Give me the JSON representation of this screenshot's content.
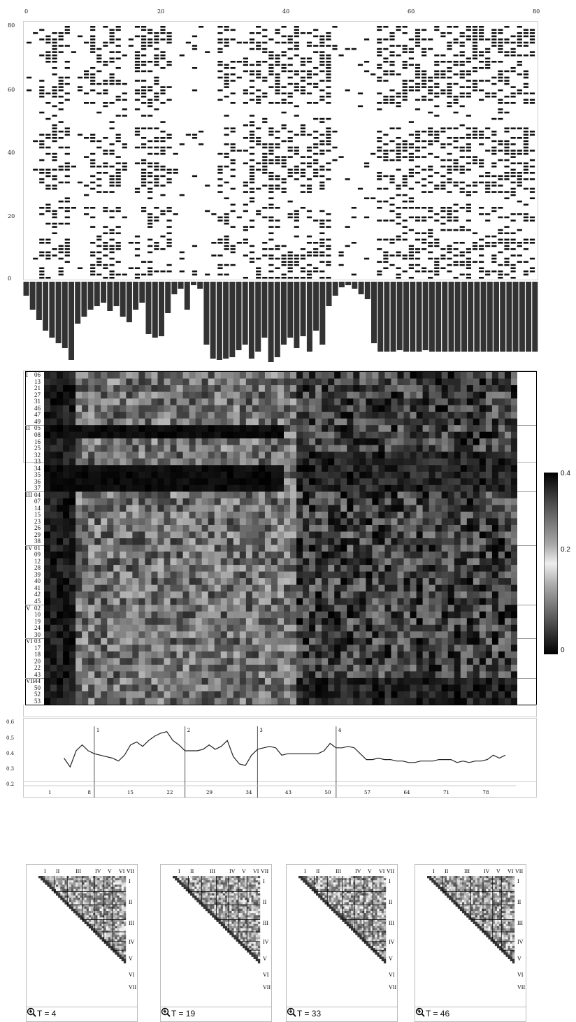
{
  "raster": {
    "x_ticks": [
      "0",
      "20",
      "40",
      "60",
      "80"
    ],
    "y_ticks": [
      "0",
      "20",
      "40",
      "60",
      "80"
    ]
  },
  "heatmap": {
    "groups": [
      {
        "name": "I",
        "rows": [
          "06",
          "13",
          "21",
          "27",
          "31",
          "46",
          "47",
          "49"
        ]
      },
      {
        "name": "II",
        "rows": [
          "05",
          "08",
          "16",
          "25",
          "32",
          "33",
          "34",
          "35",
          "36",
          "37"
        ]
      },
      {
        "name": "III",
        "rows": [
          "04",
          "07",
          "14",
          "15",
          "23",
          "26",
          "29",
          "38"
        ]
      },
      {
        "name": "IV",
        "rows": [
          "01",
          "09",
          "12",
          "28",
          "39",
          "40",
          "41",
          "42",
          "45"
        ]
      },
      {
        "name": "V",
        "rows": [
          "02",
          "10",
          "19",
          "24",
          "30"
        ]
      },
      {
        "name": "VI",
        "rows": [
          "03",
          "17",
          "18",
          "20",
          "22",
          "43"
        ]
      },
      {
        "name": "VII",
        "rows": [
          "44",
          "50",
          "52",
          "53"
        ]
      }
    ]
  },
  "colorbar": {
    "labels": [
      "0.4",
      "0.2",
      "0"
    ]
  },
  "chart_data": [
    {
      "type": "line",
      "x_ticks": [
        "1",
        "8",
        "15",
        "22",
        "29",
        "34",
        "43",
        "50",
        "57",
        "64",
        "71",
        "78"
      ],
      "y_ticks": [
        "0.2",
        "0.3",
        "0.4",
        "0.5",
        "0.6"
      ],
      "ylim": [
        0.2,
        0.6
      ],
      "markers": [
        {
          "label": "1",
          "x": 6
        },
        {
          "label": "2",
          "x": 21
        },
        {
          "label": "3",
          "x": 33
        },
        {
          "label": "4",
          "x": 46
        }
      ],
      "series": [
        {
          "values": [
            0.35,
            0.29,
            0.4,
            0.44,
            0.4,
            0.38,
            0.37,
            0.36,
            0.35,
            0.33,
            0.37,
            0.44,
            0.46,
            0.43,
            0.47,
            0.5,
            0.52,
            0.53,
            0.47,
            0.44,
            0.4,
            0.4,
            0.4,
            0.41,
            0.44,
            0.41,
            0.43,
            0.47,
            0.36,
            0.31,
            0.3,
            0.37,
            0.41,
            0.42,
            0.43,
            0.42,
            0.37,
            0.38,
            0.38,
            0.38,
            0.38,
            0.38,
            0.38,
            0.4,
            0.45,
            0.42,
            0.42,
            0.43,
            0.42,
            0.38,
            0.34,
            0.34,
            0.35,
            0.34,
            0.34,
            0.33,
            0.33,
            0.32,
            0.32,
            0.33,
            0.33,
            0.33,
            0.34,
            0.34,
            0.34,
            0.32,
            0.33,
            0.32,
            0.33,
            0.33,
            0.34,
            0.37,
            0.35,
            0.37
          ]
        }
      ]
    }
  ],
  "minimaps": [
    {
      "index": "1",
      "label": "T = 4"
    },
    {
      "index": "2",
      "label": "T = 19"
    },
    {
      "index": "3",
      "label": "T = 33"
    },
    {
      "index": "4",
      "label": "T = 46"
    }
  ],
  "minimap_groups": [
    "I",
    "II",
    "III",
    "IV",
    "V",
    "VI",
    "VII"
  ],
  "icons": {
    "zoom": "zoom-in-icon"
  }
}
